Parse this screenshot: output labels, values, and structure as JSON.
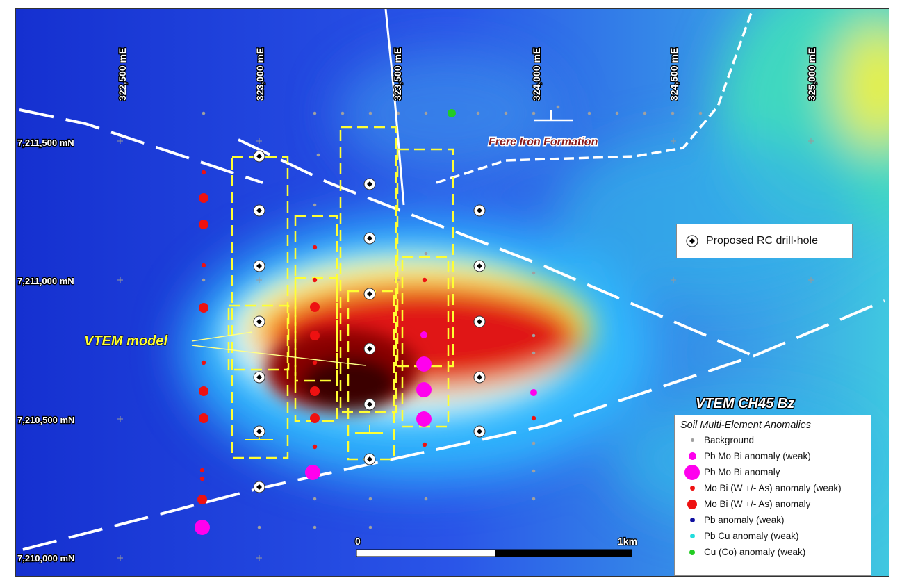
{
  "map": {
    "eastings": [
      "322,500 mE",
      "323,000 mE",
      "323,500 mE",
      "324,000 mE",
      "324,500 mE",
      "325,000 mE"
    ],
    "northings": [
      "7,211,500 mN",
      "7,211,000 mN",
      "7,210,500 mN",
      "7,210,000 mN"
    ],
    "formation_label": "Frere Iron Formation",
    "vtem_model_label": "VTEM model",
    "vtem_channel_label": "VTEM CH45 Bz",
    "scale_start": "0",
    "scale_end": "1km",
    "colors": {
      "background_low": "#1a3ad8",
      "anomaly_high": "#d01010",
      "anomaly_core": "#5a0000",
      "model_boxes": "#ffff33",
      "structures": "#ffffff"
    }
  },
  "drill_legend": {
    "label": "Proposed RC drill-hole",
    "icon": "drill-hole-symbol-icon"
  },
  "soil_legend": {
    "title": "Soil Multi-Element Anomalies",
    "items": [
      {
        "label": "Background",
        "color": "#a0a0a0",
        "size": "tiny"
      },
      {
        "label": "Pb Mo Bi anomaly (weak)",
        "color": "#ff00ee",
        "size": "medium"
      },
      {
        "label": "Pb Mo Bi anomaly",
        "color": "#ff00ee",
        "size": "large"
      },
      {
        "label": "Mo Bi (W +/- As) anomaly (weak)",
        "color": "#ee1111",
        "size": "small"
      },
      {
        "label": "Mo Bi (W +/- As) anomaly",
        "color": "#ee1111",
        "size": "medium-large"
      },
      {
        "label": "Pb anomaly (weak)",
        "color": "#1010a0",
        "size": "small"
      },
      {
        "label": "Pb Cu anomaly (weak)",
        "color": "#22dddd",
        "size": "small"
      },
      {
        "label": "Cu (Co) anomaly (weak)",
        "color": "#22cc22",
        "size": "small"
      }
    ]
  }
}
